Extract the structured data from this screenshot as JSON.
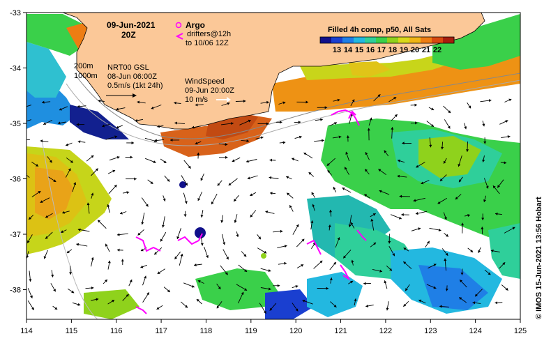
{
  "map": {
    "date": "09-Jun-2021",
    "time": "20Z",
    "argo_label": "Argo",
    "drifters_label": "drifters@12h",
    "drifters_range": "to 10/06 12Z",
    "colorbar_title": "Filled 4h comp, p50, All Sats",
    "colorbar_ticks": [
      "13",
      "14",
      "15",
      "16",
      "17",
      "18",
      "19",
      "20",
      "21",
      "22"
    ],
    "colorbar_colors": [
      "#10108a",
      "#1a3fd0",
      "#1f7fe6",
      "#23b8e0",
      "#2fcf9a",
      "#3ad04a",
      "#8fd21c",
      "#d9d91a",
      "#f0b514",
      "#ee7d12",
      "#d8480f",
      "#a81e0e"
    ],
    "depth_label_1": "200m",
    "depth_label_2": "1000m",
    "nrt_label": "NRT00 GSL",
    "nrt_time": "08-Jun 06:00Z",
    "current_scale": "0.5m/s (1kt 24h)",
    "wind_title": "WindSpeed",
    "wind_time": "09-Jun 20:00Z",
    "wind_scale": "10 m/s",
    "credit": "© IMOS 15-Jun-2021 13:56 Hobart",
    "x_ticks": [
      "114",
      "115",
      "116",
      "117",
      "118",
      "119",
      "120",
      "121",
      "122",
      "123",
      "124",
      "125"
    ],
    "y_ticks": [
      "-33",
      "-34",
      "-35",
      "-36",
      "-37",
      "-38"
    ],
    "colors": {
      "land": "#fbc898",
      "ocean": "#ffffff",
      "drifter": "#ff00ff",
      "wind_arrow": "#ffffff"
    }
  }
}
